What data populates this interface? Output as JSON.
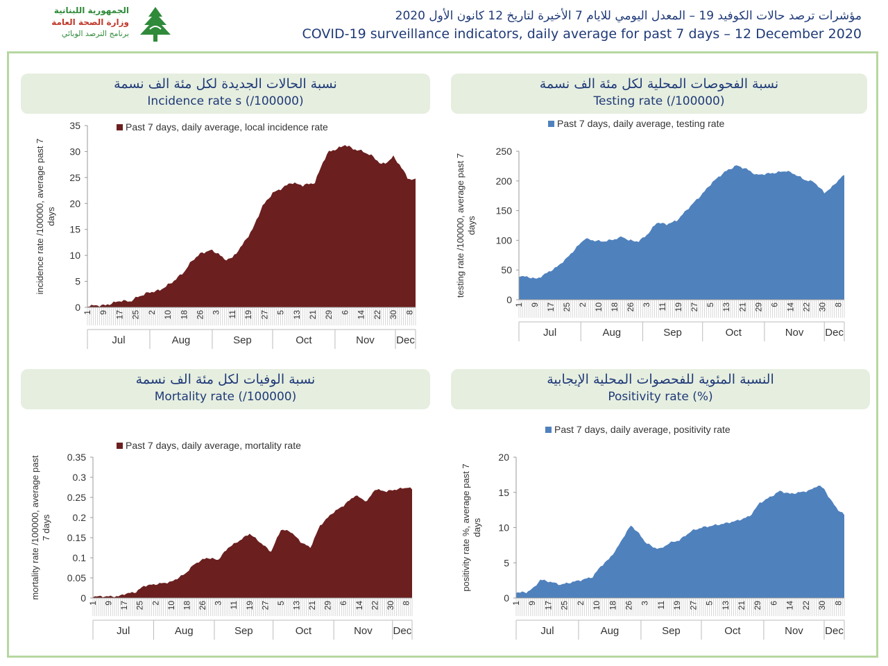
{
  "header": {
    "logo_line1": "الجمهورية اللبنانية",
    "logo_line2": "وزارة الصحة العامة",
    "logo_line3": "برنامج الترصد الوبائي",
    "title_ar": "مؤشرات ترصد حالات الكوفيد 19 – المعدل اليومي للايام 7 الأخيرة لتاريخ 12 كانون الأول 2020",
    "title_en": "COVID-19 surveillance indicators, daily average for past 7 days – 12 December 2020"
  },
  "panels": {
    "incidence": {
      "title_ar": "نسبة الحالات الجديدة لكل مئة الف نسمة",
      "title_en": "Incidence rate s  (/100000)"
    },
    "testing": {
      "title_ar": "نسبة الفحوصات المحلية لكل مئة الف نسمة",
      "title_en": "Testing rate (/100000)"
    },
    "mortality": {
      "title_ar": "نسبة الوفيات لكل مئة الف نسمة",
      "title_en": "Mortality rate (/100000)"
    },
    "positivity": {
      "title_ar": "النسبة المئوية للفحصوات المحلية الإيجابية",
      "title_en": "Positivity rate (%)"
    }
  },
  "chart_data": [
    {
      "id": "incidence",
      "type": "area",
      "color": "#6b1f1f",
      "legend": "Past 7 days, daily average, local incidence rate",
      "ylabel": "incidence rate /100000, average past 7 days",
      "ylim": [
        0,
        35
      ],
      "yticks": [
        "0",
        "5",
        "10",
        "15",
        "20",
        "25",
        "30",
        "35"
      ],
      "x_date_ticks": [
        "1",
        "9",
        "17",
        "25",
        "2",
        "10",
        "18",
        "26",
        "3",
        "11",
        "19",
        "27",
        "5",
        "13",
        "21",
        "29",
        "6",
        "14",
        "22",
        "30",
        "8"
      ],
      "months": [
        "Jul",
        "Aug",
        "Sep",
        "Oct",
        "Nov",
        "Dec"
      ],
      "x_range": [
        "2020-07-01",
        "2020-12-11"
      ],
      "series_points": [
        [
          "2020-07-01",
          0.3
        ],
        [
          "2020-07-10",
          0.4
        ],
        [
          "2020-07-15",
          1.0
        ],
        [
          "2020-07-18",
          1.3
        ],
        [
          "2020-07-22",
          1.1
        ],
        [
          "2020-07-26",
          2.0
        ],
        [
          "2020-07-31",
          2.8
        ],
        [
          "2020-08-06",
          3.3
        ],
        [
          "2020-08-12",
          4.8
        ],
        [
          "2020-08-18",
          6.8
        ],
        [
          "2020-08-22",
          9.0
        ],
        [
          "2020-08-26",
          10.3
        ],
        [
          "2020-08-31",
          11.0
        ],
        [
          "2020-09-04",
          10.4
        ],
        [
          "2020-09-07",
          9.2
        ],
        [
          "2020-09-11",
          9.5
        ],
        [
          "2020-09-16",
          12.0
        ],
        [
          "2020-09-21",
          15.0
        ],
        [
          "2020-09-26",
          19.5
        ],
        [
          "2020-10-01",
          22.0
        ],
        [
          "2020-10-06",
          23.0
        ],
        [
          "2020-10-10",
          24.0
        ],
        [
          "2020-10-16",
          23.5
        ],
        [
          "2020-10-22",
          24.0
        ],
        [
          "2020-10-26",
          28.0
        ],
        [
          "2020-10-29",
          30.0
        ],
        [
          "2020-11-02",
          30.5
        ],
        [
          "2020-11-06",
          31.3
        ],
        [
          "2020-11-10",
          30.5
        ],
        [
          "2020-11-15",
          30.0
        ],
        [
          "2020-11-20",
          29.0
        ],
        [
          "2020-11-24",
          27.5
        ],
        [
          "2020-11-27",
          28.0
        ],
        [
          "2020-11-30",
          29.0
        ],
        [
          "2020-12-03",
          27.5
        ],
        [
          "2020-12-07",
          25.0
        ],
        [
          "2020-12-09",
          24.5
        ],
        [
          "2020-12-11",
          24.8
        ]
      ]
    },
    {
      "id": "testing",
      "type": "area",
      "color": "#4f81bd",
      "legend": "Past 7 days, daily average, testing rate",
      "ylabel": "testing rate /100000, average past 7 days",
      "ylim": [
        0,
        250
      ],
      "yticks": [
        "0",
        "50",
        "100",
        "150",
        "200",
        "250"
      ],
      "x_date_ticks": [
        "1",
        "9",
        "17",
        "25",
        "2",
        "10",
        "18",
        "26",
        "3",
        "11",
        "19",
        "27",
        "5",
        "13",
        "21",
        "29",
        "6",
        "14",
        "22",
        "30",
        "8"
      ],
      "months": [
        "Jul",
        "Aug",
        "Sep",
        "Oct",
        "Nov",
        "Dec"
      ],
      "x_range": [
        "2020-07-01",
        "2020-12-11"
      ],
      "series_points": [
        [
          "2020-07-01",
          40
        ],
        [
          "2020-07-06",
          38
        ],
        [
          "2020-07-10",
          35
        ],
        [
          "2020-07-15",
          45
        ],
        [
          "2020-07-20",
          55
        ],
        [
          "2020-07-25",
          70
        ],
        [
          "2020-07-31",
          92
        ],
        [
          "2020-08-03",
          103
        ],
        [
          "2020-08-07",
          100
        ],
        [
          "2020-08-12",
          98
        ],
        [
          "2020-08-17",
          101
        ],
        [
          "2020-08-22",
          106
        ],
        [
          "2020-08-25",
          100
        ],
        [
          "2020-08-30",
          98
        ],
        [
          "2020-09-04",
          112
        ],
        [
          "2020-09-08",
          130
        ],
        [
          "2020-09-13",
          127
        ],
        [
          "2020-09-18",
          133
        ],
        [
          "2020-09-25",
          158
        ],
        [
          "2020-09-30",
          175
        ],
        [
          "2020-10-06",
          198
        ],
        [
          "2020-10-12",
          215
        ],
        [
          "2020-10-18",
          226
        ],
        [
          "2020-10-23",
          220
        ],
        [
          "2020-10-28",
          210
        ],
        [
          "2020-11-02",
          212
        ],
        [
          "2020-11-07",
          214
        ],
        [
          "2020-11-12",
          217
        ],
        [
          "2020-11-17",
          210
        ],
        [
          "2020-11-21",
          202
        ],
        [
          "2020-11-26",
          198
        ],
        [
          "2020-12-01",
          180
        ],
        [
          "2020-12-05",
          190
        ],
        [
          "2020-12-09",
          205
        ],
        [
          "2020-12-11",
          210
        ]
      ]
    },
    {
      "id": "mortality",
      "type": "area",
      "color": "#6b1f1f",
      "legend": "Past 7 days, daily average, mortality rate",
      "ylabel": "mortality rate /100000, average past 7 days",
      "ylim": [
        0,
        0.35
      ],
      "yticks": [
        "0",
        "0.05",
        "0.1",
        "0.15",
        "0.2",
        "0.25",
        "0.3",
        "0.35"
      ],
      "x_date_ticks": [
        "1",
        "9",
        "17",
        "25",
        "2",
        "10",
        "18",
        "26",
        "3",
        "11",
        "19",
        "27",
        "5",
        "13",
        "21",
        "29",
        "6",
        "14",
        "22",
        "30",
        "8"
      ],
      "months": [
        "Jul",
        "Aug",
        "Sep",
        "Oct",
        "Nov",
        "Dec"
      ],
      "x_range": [
        "2020-07-01",
        "2020-12-11"
      ],
      "series_points": [
        [
          "2020-07-01",
          0.004
        ],
        [
          "2020-07-14",
          0.004
        ],
        [
          "2020-07-17",
          0.01
        ],
        [
          "2020-07-23",
          0.015
        ],
        [
          "2020-07-27",
          0.03
        ],
        [
          "2020-08-03",
          0.035
        ],
        [
          "2020-08-10",
          0.04
        ],
        [
          "2020-08-17",
          0.06
        ],
        [
          "2020-08-22",
          0.085
        ],
        [
          "2020-08-28",
          0.1
        ],
        [
          "2020-09-03",
          0.095
        ],
        [
          "2020-09-08",
          0.125
        ],
        [
          "2020-09-13",
          0.14
        ],
        [
          "2020-09-19",
          0.16
        ],
        [
          "2020-09-24",
          0.14
        ],
        [
          "2020-09-30",
          0.115
        ],
        [
          "2020-10-05",
          0.17
        ],
        [
          "2020-10-10",
          0.165
        ],
        [
          "2020-10-15",
          0.14
        ],
        [
          "2020-10-20",
          0.125
        ],
        [
          "2020-10-25",
          0.18
        ],
        [
          "2020-10-31",
          0.21
        ],
        [
          "2020-11-06",
          0.23
        ],
        [
          "2020-11-12",
          0.255
        ],
        [
          "2020-11-18",
          0.24
        ],
        [
          "2020-11-22",
          0.27
        ],
        [
          "2020-11-28",
          0.265
        ],
        [
          "2020-12-03",
          0.27
        ],
        [
          "2020-12-09",
          0.275
        ],
        [
          "2020-12-11",
          0.27
        ]
      ]
    },
    {
      "id": "positivity",
      "type": "area",
      "color": "#4f81bd",
      "legend": "Past 7 days, daily average, positivity rate",
      "ylabel": "positivity rate %, average past 7 days",
      "ylim": [
        0,
        20
      ],
      "yticks": [
        "0",
        "5",
        "10",
        "15",
        "20"
      ],
      "x_date_ticks": [
        "1",
        "9",
        "17",
        "25",
        "2",
        "10",
        "18",
        "26",
        "3",
        "11",
        "19",
        "27",
        "5",
        "13",
        "21",
        "29",
        "6",
        "14",
        "22",
        "30",
        "8"
      ],
      "months": [
        "Jul",
        "Aug",
        "Sep",
        "Oct",
        "Nov",
        "Dec"
      ],
      "x_range": [
        "2020-07-01",
        "2020-12-11"
      ],
      "series_points": [
        [
          "2020-07-01",
          0.8
        ],
        [
          "2020-07-06",
          0.8
        ],
        [
          "2020-07-10",
          1.5
        ],
        [
          "2020-07-13",
          2.6
        ],
        [
          "2020-07-18",
          2.3
        ],
        [
          "2020-07-23",
          1.9
        ],
        [
          "2020-07-28",
          2.2
        ],
        [
          "2020-08-03",
          2.6
        ],
        [
          "2020-08-08",
          3.0
        ],
        [
          "2020-08-12",
          4.5
        ],
        [
          "2020-08-16",
          5.5
        ],
        [
          "2020-08-20",
          7.0
        ],
        [
          "2020-08-24",
          9.0
        ],
        [
          "2020-08-27",
          10.3
        ],
        [
          "2020-08-30",
          9.5
        ],
        [
          "2020-09-03",
          8.0
        ],
        [
          "2020-09-07",
          7.2
        ],
        [
          "2020-09-11",
          7.0
        ],
        [
          "2020-09-15",
          7.8
        ],
        [
          "2020-09-20",
          8.2
        ],
        [
          "2020-09-26",
          9.5
        ],
        [
          "2020-10-01",
          10.0
        ],
        [
          "2020-10-07",
          10.3
        ],
        [
          "2020-10-13",
          10.6
        ],
        [
          "2020-10-19",
          11.0
        ],
        [
          "2020-10-25",
          11.6
        ],
        [
          "2020-10-30",
          13.5
        ],
        [
          "2020-11-04",
          14.3
        ],
        [
          "2020-11-09",
          15.2
        ],
        [
          "2020-11-14",
          14.8
        ],
        [
          "2020-11-19",
          15.0
        ],
        [
          "2020-11-24",
          15.3
        ],
        [
          "2020-11-28",
          16.0
        ],
        [
          "2020-12-01",
          15.5
        ],
        [
          "2020-12-04",
          14.0
        ],
        [
          "2020-12-08",
          12.5
        ],
        [
          "2020-12-11",
          11.8
        ]
      ]
    }
  ]
}
